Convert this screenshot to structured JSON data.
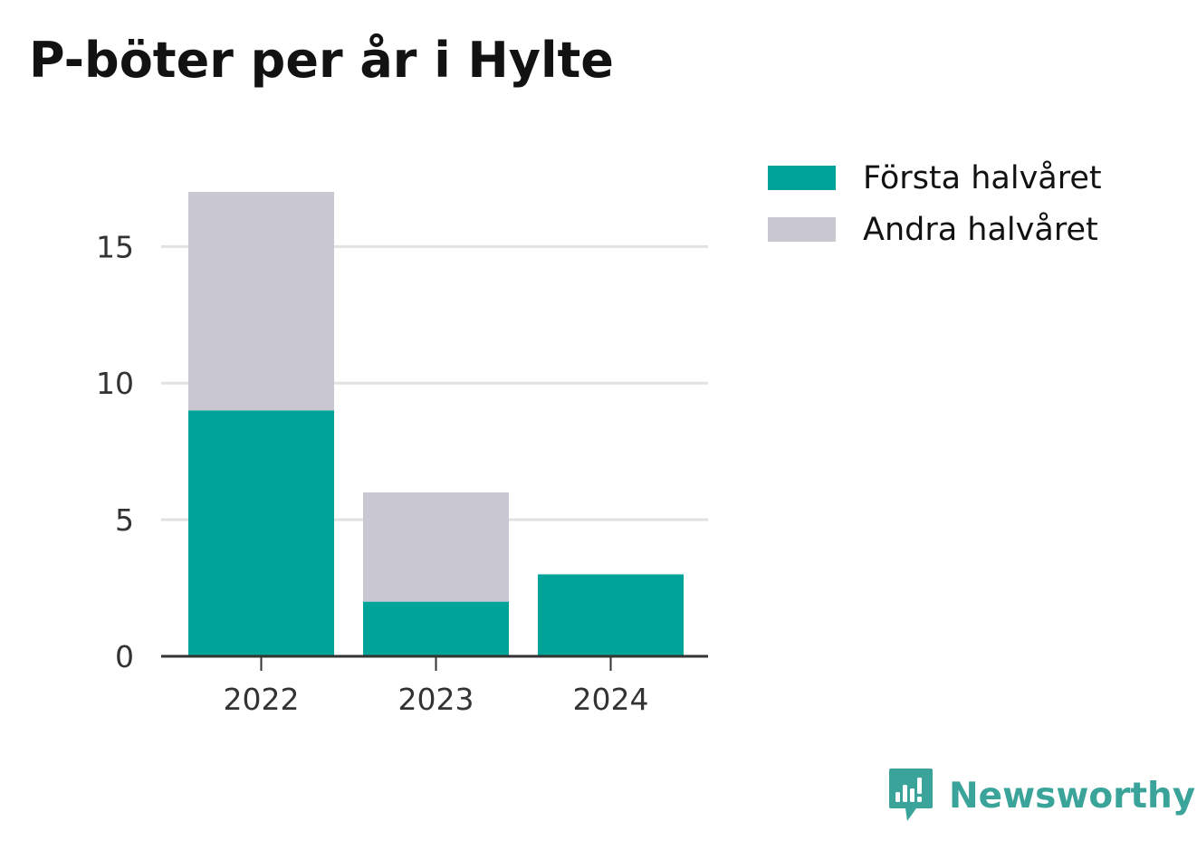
{
  "page": {
    "title": "P-böter per år i Hylte"
  },
  "legend": {
    "items": [
      {
        "label": "Första halvåret",
        "color": "#00a398"
      },
      {
        "label": "Andra halvåret",
        "color": "#c8c7d2"
      }
    ]
  },
  "branding": {
    "name": "Newsworthy",
    "logo_icon": "newsworthy-logo-icon",
    "color": "#3aa39a"
  },
  "chart_data": {
    "type": "bar",
    "stacked": true,
    "title": "P-böter per år i Hylte",
    "xlabel": "",
    "ylabel": "",
    "categories": [
      "2022",
      "2023",
      "2024"
    ],
    "series": [
      {
        "name": "Första halvåret",
        "values": [
          9,
          2,
          3
        ],
        "color": "#00a398"
      },
      {
        "name": "Andra halvåret",
        "values": [
          8,
          4,
          0
        ],
        "color": "#c8c7d2"
      }
    ],
    "ylim": [
      0,
      17
    ],
    "yticks": [
      0,
      5,
      10,
      15
    ],
    "grid": true,
    "legend_position": "top-right"
  }
}
